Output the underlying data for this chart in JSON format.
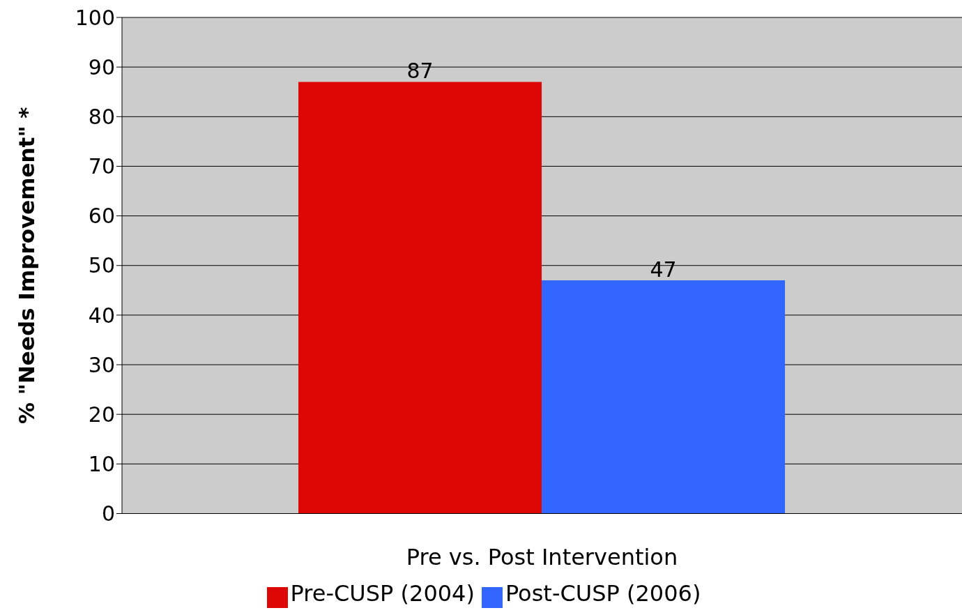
{
  "chart_data": {
    "type": "bar",
    "xlabel": "Pre vs. Post Intervention",
    "ylabel": "% \"Needs Improvement\" *",
    "categories": [
      null
    ],
    "series": [
      {
        "name": "Pre-CUSP (2004)",
        "color": "#dd0806",
        "values": [
          87
        ]
      },
      {
        "name": "Post-CUSP (2006)",
        "color": "#3366ff",
        "values": [
          47
        ]
      }
    ],
    "ylim": [
      0,
      100
    ],
    "yticks": [
      0,
      10,
      20,
      30,
      40,
      50,
      60,
      70,
      80,
      90,
      100
    ],
    "grid": "y",
    "legend": "bottom",
    "data_labels": true
  }
}
